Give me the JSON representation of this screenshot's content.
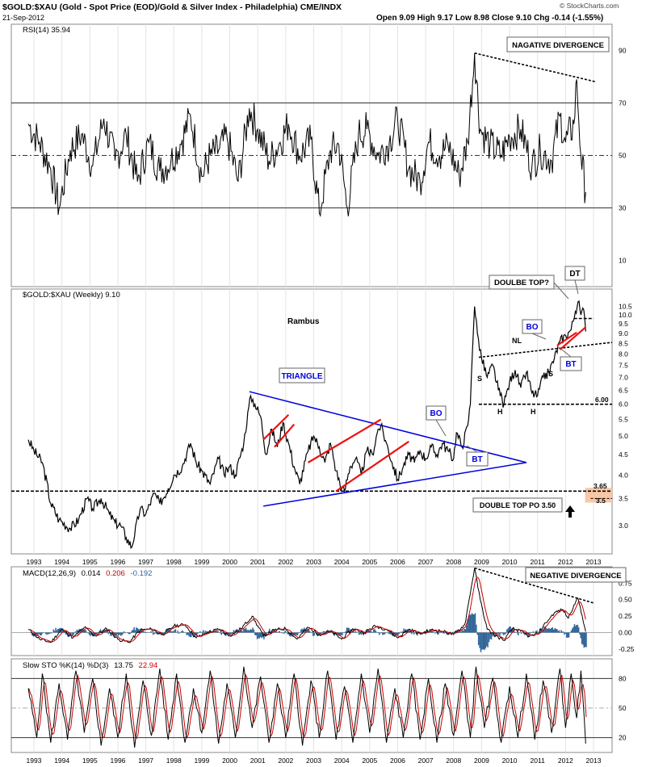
{
  "header": {
    "symbol_line": "$GOLD:$XAU (Gold - Spot Price (EOD)/Gold & Silver Index - Philadelphia) CME/INDX",
    "date": "21-Sep-2012",
    "ohlc": "Open 9.09  High 9.17  Low 8.98  Close 9.10  Chg -0.14 (-1.55%)",
    "watermark": "© StockCharts.com"
  },
  "colors": {
    "price": "#000000",
    "trendline": "#0000dd",
    "channel": "#ee1111",
    "signal": "#cc0000",
    "histogram": "#336699",
    "zone": "#f7c7a6",
    "grid": "#e3e3e3"
  },
  "chart_data": [
    {
      "type": "line",
      "panel": "rsi",
      "legend": "RSI(14) 35.94",
      "ylim": [
        0,
        100
      ],
      "yticks": [
        10,
        30,
        50,
        70,
        90
      ],
      "ref_lines": [
        30,
        50,
        70
      ],
      "x_range": [
        1992.75,
        2012.72
      ],
      "points": [
        [
          1992.8,
          62
        ],
        [
          1993.2,
          55
        ],
        [
          1993.6,
          45
        ],
        [
          1993.9,
          30
        ],
        [
          1994.3,
          52
        ],
        [
          1994.7,
          58
        ],
        [
          1995.1,
          46
        ],
        [
          1995.5,
          64
        ],
        [
          1995.9,
          48
        ],
        [
          1996.3,
          58
        ],
        [
          1996.7,
          40
        ],
        [
          1997.1,
          55
        ],
        [
          1997.5,
          44
        ],
        [
          1997.9,
          48
        ],
        [
          1998.3,
          56
        ],
        [
          1998.6,
          65
        ],
        [
          1999.0,
          42
        ],
        [
          1999.3,
          50
        ],
        [
          1999.6,
          52
        ],
        [
          1999.9,
          57
        ],
        [
          2000.3,
          40
        ],
        [
          2000.7,
          68
        ],
        [
          2001.0,
          60
        ],
        [
          2001.4,
          48
        ],
        [
          2001.8,
          55
        ],
        [
          2002.1,
          62
        ],
        [
          2002.5,
          50
        ],
        [
          2002.9,
          56
        ],
        [
          2003.2,
          28
        ],
        [
          2003.6,
          52
        ],
        [
          2003.9,
          54
        ],
        [
          2004.2,
          30
        ],
        [
          2004.6,
          58
        ],
        [
          2004.9,
          60
        ],
        [
          2005.3,
          50
        ],
        [
          2005.7,
          55
        ],
        [
          2006.0,
          64
        ],
        [
          2006.4,
          45
        ],
        [
          2006.8,
          40
        ],
        [
          2007.1,
          55
        ],
        [
          2007.5,
          50
        ],
        [
          2007.8,
          54
        ],
        [
          2008.2,
          42
        ],
        [
          2008.5,
          55
        ],
        [
          2008.75,
          89
        ],
        [
          2008.95,
          60
        ],
        [
          2009.3,
          54
        ],
        [
          2009.7,
          50
        ],
        [
          2010.0,
          57
        ],
        [
          2010.4,
          60
        ],
        [
          2010.8,
          46
        ],
        [
          2011.1,
          52
        ],
        [
          2011.5,
          48
        ],
        [
          2011.8,
          65
        ],
        [
          2012.0,
          55
        ],
        [
          2012.3,
          62
        ],
        [
          2012.4,
          79
        ],
        [
          2012.55,
          50
        ],
        [
          2012.72,
          36
        ]
      ],
      "annotations": [
        "NAGATIVE DIVERGENCE"
      ],
      "divergence_line": [
        [
          2008.75,
          89
        ],
        [
          2013.1,
          78
        ]
      ]
    },
    {
      "type": "line",
      "panel": "price",
      "legend": "$GOLD:$XAU (Weekly) 9.10",
      "scale": "log",
      "ylim": [
        2.55,
        11.6
      ],
      "yticks": [
        3.0,
        3.5,
        4.0,
        4.5,
        5.0,
        5.5,
        6.0,
        6.5,
        7.0,
        7.5,
        8.0,
        8.5,
        9.0,
        9.5,
        10.0,
        10.5
      ],
      "x_range": [
        1992.75,
        2012.72
      ],
      "xticks": [
        "1993",
        "1994",
        "1995",
        "1996",
        "1997",
        "1998",
        "1999",
        "2000",
        "2001",
        "2002",
        "2003",
        "2004",
        "2005",
        "2006",
        "2007",
        "2008",
        "2009",
        "2010",
        "2011",
        "2012",
        "2013"
      ],
      "points": [
        [
          1992.8,
          4.9
        ],
        [
          1993.0,
          4.6
        ],
        [
          1993.3,
          4.3
        ],
        [
          1993.6,
          3.4
        ],
        [
          1993.9,
          3.1
        ],
        [
          1994.3,
          2.95
        ],
        [
          1994.6,
          3.1
        ],
        [
          1994.9,
          3.5
        ],
        [
          1995.1,
          3.3
        ],
        [
          1995.4,
          3.5
        ],
        [
          1995.7,
          3.2
        ],
        [
          1995.9,
          3.05
        ],
        [
          1996.1,
          3.0
        ],
        [
          1996.3,
          2.8
        ],
        [
          1996.5,
          2.65
        ],
        [
          1996.8,
          3.3
        ],
        [
          1997.0,
          3.2
        ],
        [
          1997.3,
          3.6
        ],
        [
          1997.5,
          3.4
        ],
        [
          1997.8,
          3.7
        ],
        [
          1998.0,
          4.0
        ],
        [
          1998.3,
          4.2
        ],
        [
          1998.6,
          4.8
        ],
        [
          1998.8,
          4.3
        ],
        [
          1999.0,
          4.1
        ],
        [
          1999.3,
          3.8
        ],
        [
          1999.6,
          4.4
        ],
        [
          1999.8,
          4.0
        ],
        [
          2000.0,
          4.2
        ],
        [
          2000.2,
          4.0
        ],
        [
          2000.5,
          4.8
        ],
        [
          2000.75,
          6.3
        ],
        [
          2000.9,
          6.0
        ],
        [
          2001.1,
          5.6
        ],
        [
          2001.3,
          4.5
        ],
        [
          2001.5,
          5.2
        ],
        [
          2001.7,
          4.7
        ],
        [
          2001.9,
          5.4
        ],
        [
          2002.1,
          4.8
        ],
        [
          2002.3,
          4.2
        ],
        [
          2002.5,
          3.8
        ],
        [
          2002.8,
          4.6
        ],
        [
          2003.0,
          5.0
        ],
        [
          2003.2,
          4.7
        ],
        [
          2003.4,
          4.3
        ],
        [
          2003.6,
          4.8
        ],
        [
          2003.8,
          4.1
        ],
        [
          2004.0,
          3.7
        ],
        [
          2004.1,
          3.65
        ],
        [
          2004.3,
          4.2
        ],
        [
          2004.5,
          4.4
        ],
        [
          2004.7,
          4.0
        ],
        [
          2004.9,
          4.6
        ],
        [
          2005.1,
          4.5
        ],
        [
          2005.3,
          5.2
        ],
        [
          2005.4,
          5.3
        ],
        [
          2005.6,
          4.8
        ],
        [
          2005.8,
          4.3
        ],
        [
          2006.0,
          3.9
        ],
        [
          2006.2,
          4.2
        ],
        [
          2006.4,
          4.5
        ],
        [
          2006.6,
          4.3
        ],
        [
          2006.8,
          4.6
        ],
        [
          2007.0,
          4.4
        ],
        [
          2007.2,
          4.7
        ],
        [
          2007.4,
          4.5
        ],
        [
          2007.6,
          4.8
        ],
        [
          2007.8,
          4.6
        ],
        [
          2008.0,
          4.4
        ],
        [
          2008.1,
          5.1
        ],
        [
          2008.3,
          4.7
        ],
        [
          2008.5,
          5.3
        ],
        [
          2008.6,
          6.0
        ],
        [
          2008.75,
          10.5
        ],
        [
          2008.85,
          9.0
        ],
        [
          2009.0,
          7.8
        ],
        [
          2009.2,
          7.0
        ],
        [
          2009.4,
          7.5
        ],
        [
          2009.6,
          6.5
        ],
        [
          2009.8,
          6.0
        ],
        [
          2010.0,
          6.8
        ],
        [
          2010.2,
          7.3
        ],
        [
          2010.4,
          6.6
        ],
        [
          2010.6,
          7.2
        ],
        [
          2010.8,
          6.4
        ],
        [
          2011.0,
          6.3
        ],
        [
          2011.2,
          7.0
        ],
        [
          2011.4,
          7.2
        ],
        [
          2011.6,
          7.8
        ],
        [
          2011.8,
          8.6
        ],
        [
          2012.0,
          8.9
        ],
        [
          2012.2,
          9.2
        ],
        [
          2012.35,
          10.2
        ],
        [
          2012.45,
          10.8
        ],
        [
          2012.55,
          10.0
        ],
        [
          2012.65,
          10.3
        ],
        [
          2012.72,
          9.1
        ]
      ],
      "annotations": {
        "author": "Rambus",
        "triangle": "TRIANGLE",
        "bo": "BO",
        "bt": "BT",
        "bo2": "BO",
        "bt2": "BT",
        "double_top_q": "DOULBE TOP?",
        "dt": "DT",
        "nl": "NL",
        "s1": "S",
        "s2": "S",
        "h1": "H",
        "h2": "H",
        "lvl_600": "6.00",
        "lvl_365": "3.65",
        "lvl_35": "3.5",
        "po": "DOUBLE TOP PO 3.50"
      },
      "levels": [
        3.65,
        3.5,
        6.0
      ]
    },
    {
      "type": "line",
      "panel": "macd",
      "legend": {
        "name": "MACD(12,26,9)",
        "v1": "0.014",
        "v2": "0.206",
        "v3": "-0.192"
      },
      "ylim": [
        -0.35,
        1.0
      ],
      "yticks": [
        -0.25,
        0.0,
        0.25,
        0.5,
        0.75
      ],
      "x_range": [
        1992.75,
        2012.72
      ],
      "points": [
        [
          1992.8,
          0.05
        ],
        [
          1993.2,
          -0.1
        ],
        [
          1993.6,
          -0.15
        ],
        [
          1994.0,
          0.05
        ],
        [
          1994.4,
          -0.08
        ],
        [
          1994.8,
          0.08
        ],
        [
          1995.2,
          -0.05
        ],
        [
          1995.6,
          0.06
        ],
        [
          1996.0,
          -0.1
        ],
        [
          1996.4,
          -0.15
        ],
        [
          1996.8,
          0.04
        ],
        [
          1997.2,
          0.05
        ],
        [
          1997.6,
          -0.03
        ],
        [
          1998.0,
          0.1
        ],
        [
          1998.4,
          0.12
        ],
        [
          1998.8,
          -0.08
        ],
        [
          1999.2,
          0.0
        ],
        [
          1999.6,
          0.05
        ],
        [
          2000.0,
          -0.05
        ],
        [
          2000.4,
          0.06
        ],
        [
          2000.8,
          0.25
        ],
        [
          2001.2,
          -0.05
        ],
        [
          2001.6,
          0.04
        ],
        [
          2002.0,
          0.06
        ],
        [
          2002.4,
          -0.1
        ],
        [
          2002.8,
          0.08
        ],
        [
          2003.2,
          -0.03
        ],
        [
          2003.6,
          0.02
        ],
        [
          2004.0,
          -0.1
        ],
        [
          2004.4,
          0.06
        ],
        [
          2004.8,
          0.0
        ],
        [
          2005.2,
          0.1
        ],
        [
          2005.6,
          0.05
        ],
        [
          2006.0,
          -0.08
        ],
        [
          2006.4,
          0.05
        ],
        [
          2006.8,
          -0.02
        ],
        [
          2007.2,
          0.04
        ],
        [
          2007.6,
          0.02
        ],
        [
          2008.0,
          -0.03
        ],
        [
          2008.4,
          0.12
        ],
        [
          2008.75,
          0.98
        ],
        [
          2008.95,
          0.5
        ],
        [
          2009.2,
          0.05
        ],
        [
          2009.5,
          -0.05
        ],
        [
          2009.8,
          -0.12
        ],
        [
          2010.1,
          0.06
        ],
        [
          2010.4,
          0.02
        ],
        [
          2010.7,
          -0.06
        ],
        [
          2011.0,
          -0.02
        ],
        [
          2011.3,
          0.15
        ],
        [
          2011.6,
          0.3
        ],
        [
          2011.9,
          0.35
        ],
        [
          2012.1,
          0.22
        ],
        [
          2012.3,
          0.42
        ],
        [
          2012.45,
          0.52
        ],
        [
          2012.6,
          0.25
        ],
        [
          2012.72,
          0.014
        ]
      ],
      "annotations": [
        "NEGATIVE DIVERGENCE"
      ]
    },
    {
      "type": "line",
      "panel": "stochastic",
      "legend": {
        "name": "Slow STO %K(14) %D(3)",
        "k": "13.75",
        "d": "22.94"
      },
      "ylim": [
        5,
        100
      ],
      "yticks": [
        20,
        50,
        80
      ],
      "ref_lines": [
        20,
        80
      ],
      "x_range": [
        1992.75,
        2012.72
      ],
      "points": [
        [
          1992.8,
          70
        ],
        [
          1993.1,
          20
        ],
        [
          1993.3,
          85
        ],
        [
          1993.6,
          15
        ],
        [
          1993.9,
          75
        ],
        [
          1994.2,
          18
        ],
        [
          1994.5,
          88
        ],
        [
          1994.8,
          25
        ],
        [
          1995.1,
          80
        ],
        [
          1995.4,
          12
        ],
        [
          1995.7,
          70
        ],
        [
          1996.0,
          20
        ],
        [
          1996.3,
          85
        ],
        [
          1996.6,
          10
        ],
        [
          1996.9,
          78
        ],
        [
          1997.2,
          22
        ],
        [
          1997.5,
          90
        ],
        [
          1997.8,
          18
        ],
        [
          1998.1,
          85
        ],
        [
          1998.4,
          15
        ],
        [
          1998.7,
          70
        ],
        [
          1999.0,
          25
        ],
        [
          1999.3,
          88
        ],
        [
          1999.6,
          14
        ],
        [
          1999.9,
          75
        ],
        [
          2000.2,
          20
        ],
        [
          2000.5,
          92
        ],
        [
          2000.8,
          30
        ],
        [
          2001.1,
          82
        ],
        [
          2001.4,
          15
        ],
        [
          2001.7,
          75
        ],
        [
          2002.0,
          20
        ],
        [
          2002.3,
          85
        ],
        [
          2002.6,
          12
        ],
        [
          2002.9,
          78
        ],
        [
          2003.2,
          20
        ],
        [
          2003.5,
          88
        ],
        [
          2003.8,
          18
        ],
        [
          2004.1,
          72
        ],
        [
          2004.4,
          15
        ],
        [
          2004.7,
          85
        ],
        [
          2005.0,
          25
        ],
        [
          2005.3,
          90
        ],
        [
          2005.6,
          15
        ],
        [
          2005.9,
          70
        ],
        [
          2006.2,
          20
        ],
        [
          2006.5,
          85
        ],
        [
          2006.8,
          18
        ],
        [
          2007.1,
          80
        ],
        [
          2007.4,
          15
        ],
        [
          2007.7,
          75
        ],
        [
          2008.0,
          22
        ],
        [
          2008.3,
          88
        ],
        [
          2008.6,
          20
        ],
        [
          2008.8,
          92
        ],
        [
          2009.1,
          30
        ],
        [
          2009.4,
          80
        ],
        [
          2009.7,
          15
        ],
        [
          2010.0,
          72
        ],
        [
          2010.3,
          20
        ],
        [
          2010.6,
          85
        ],
        [
          2010.9,
          18
        ],
        [
          2011.2,
          78
        ],
        [
          2011.5,
          25
        ],
        [
          2011.8,
          90
        ],
        [
          2012.0,
          30
        ],
        [
          2012.2,
          85
        ],
        [
          2012.4,
          40
        ],
        [
          2012.55,
          88
        ],
        [
          2012.72,
          14
        ]
      ]
    }
  ]
}
